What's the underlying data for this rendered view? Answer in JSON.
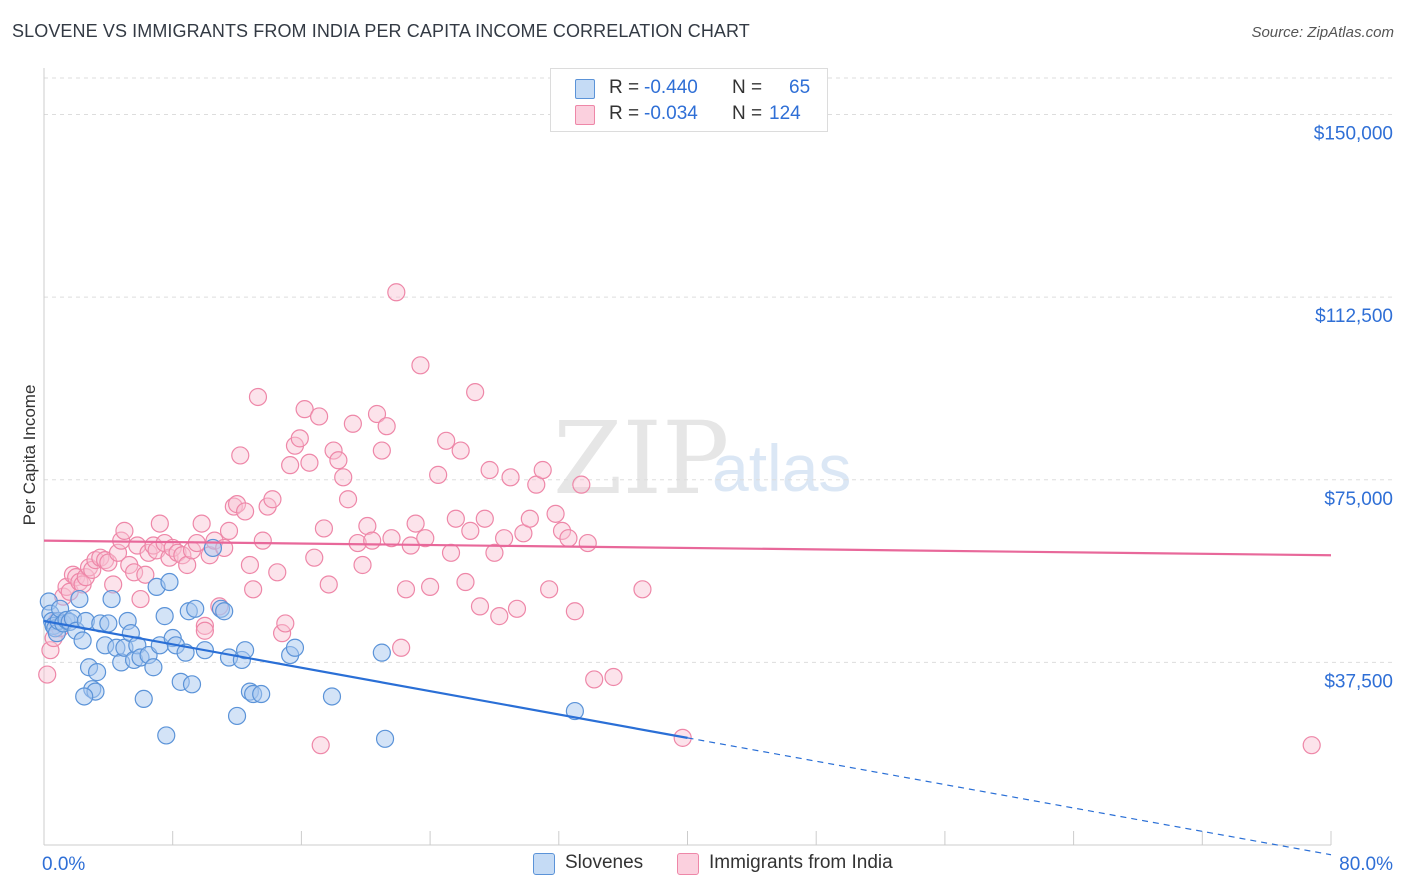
{
  "title": "SLOVENE VS IMMIGRANTS FROM INDIA PER CAPITA INCOME CORRELATION CHART",
  "source": "Source: ZipAtlas.com",
  "watermark": {
    "zip": "ZIP",
    "atlas": "atlas"
  },
  "colors": {
    "blue_fill": "#a8c8f0",
    "blue_stroke": "#5b93d8",
    "blue_line": "#2a6fd6",
    "pink_fill": "#f8c0d2",
    "pink_stroke": "#ee87a8",
    "pink_line": "#e8689a",
    "axis_label": "#2f6fd6",
    "grid": "#dddddd"
  },
  "legend": {
    "rows": [
      {
        "r_label": "R =",
        "r_value": "-0.440",
        "n_label": "N =",
        "n_value": "65"
      },
      {
        "r_label": "R =",
        "r_value": "-0.034",
        "n_label": "N =",
        "n_value": "124"
      }
    ]
  },
  "bottom_legend": {
    "series1": "Slovenes",
    "series2": "Immigrants from India"
  },
  "chart_data": {
    "type": "scatter",
    "title": "SLOVENE VS IMMIGRANTS FROM INDIA PER CAPITA INCOME CORRELATION CHART",
    "ylabel": "Per Capita Income",
    "xlabel": "",
    "xlim": [
      0,
      80
    ],
    "ylim": [
      0,
      157500
    ],
    "x_tick_labels": {
      "left": "0.0%",
      "right": "80.0%"
    },
    "y_ticks": [
      {
        "value": 37500,
        "label": "$37,500"
      },
      {
        "value": 75000,
        "label": "$75,000"
      },
      {
        "value": 112500,
        "label": "$112,500"
      },
      {
        "value": 150000,
        "label": "$150,000"
      }
    ],
    "series": [
      {
        "name": "Slovenes",
        "trend": {
          "x0": 0,
          "y0": 46000,
          "x1": 40,
          "y1": 22000,
          "dashed_to_x": 80,
          "dashed_to_y": -2000
        },
        "points": [
          [
            0.3,
            50000
          ],
          [
            0.4,
            47500
          ],
          [
            0.5,
            46000
          ],
          [
            0.6,
            45000
          ],
          [
            0.7,
            44500
          ],
          [
            0.8,
            43500
          ],
          [
            0.9,
            46000
          ],
          [
            1.0,
            48500
          ],
          [
            1.2,
            45500
          ],
          [
            1.4,
            46200
          ],
          [
            1.6,
            45800
          ],
          [
            1.8,
            46500
          ],
          [
            2.0,
            44000
          ],
          [
            2.2,
            50500
          ],
          [
            2.4,
            42000
          ],
          [
            2.6,
            46000
          ],
          [
            2.8,
            36500
          ],
          [
            3.0,
            32000
          ],
          [
            3.2,
            31500
          ],
          [
            3.5,
            45500
          ],
          [
            3.8,
            41000
          ],
          [
            4.0,
            45500
          ],
          [
            4.2,
            50500
          ],
          [
            4.5,
            40500
          ],
          [
            4.8,
            37500
          ],
          [
            5.0,
            40500
          ],
          [
            5.2,
            46000
          ],
          [
            5.4,
            43500
          ],
          [
            5.6,
            38000
          ],
          [
            5.8,
            41000
          ],
          [
            6.0,
            38500
          ],
          [
            6.2,
            30000
          ],
          [
            6.5,
            39000
          ],
          [
            6.8,
            36500
          ],
          [
            7.0,
            53000
          ],
          [
            7.2,
            41000
          ],
          [
            7.5,
            47000
          ],
          [
            7.8,
            54000
          ],
          [
            7.6,
            22500
          ],
          [
            8.0,
            42500
          ],
          [
            8.2,
            41000
          ],
          [
            8.5,
            33500
          ],
          [
            8.8,
            39500
          ],
          [
            9.0,
            48000
          ],
          [
            9.2,
            33000
          ],
          [
            9.4,
            48500
          ],
          [
            10.0,
            40000
          ],
          [
            10.5,
            61000
          ],
          [
            11.0,
            48500
          ],
          [
            11.2,
            48000
          ],
          [
            11.5,
            38500
          ],
          [
            12.0,
            26500
          ],
          [
            12.3,
            38000
          ],
          [
            12.5,
            40000
          ],
          [
            12.8,
            31500
          ],
          [
            13.0,
            31000
          ],
          [
            13.5,
            31000
          ],
          [
            15.3,
            39000
          ],
          [
            15.6,
            40500
          ],
          [
            17.9,
            30500
          ],
          [
            21.0,
            39500
          ],
          [
            21.2,
            21800
          ],
          [
            33.0,
            27500
          ],
          [
            2.5,
            30500
          ],
          [
            3.3,
            35500
          ]
        ]
      },
      {
        "name": "Immigrants from India",
        "trend": {
          "x0": 0,
          "y0": 62500,
          "x1": 80,
          "y1": 59500
        },
        "points": [
          [
            0.2,
            35000
          ],
          [
            0.4,
            40000
          ],
          [
            0.6,
            42500
          ],
          [
            0.8,
            46000
          ],
          [
            1.0,
            44500
          ],
          [
            1.2,
            51000
          ],
          [
            1.4,
            53000
          ],
          [
            1.6,
            52000
          ],
          [
            1.8,
            55500
          ],
          [
            2.0,
            55000
          ],
          [
            2.2,
            54000
          ],
          [
            2.4,
            53500
          ],
          [
            2.6,
            55000
          ],
          [
            2.8,
            57000
          ],
          [
            3.0,
            56500
          ],
          [
            3.2,
            58500
          ],
          [
            3.5,
            59000
          ],
          [
            3.8,
            58500
          ],
          [
            4.0,
            58000
          ],
          [
            4.3,
            53500
          ],
          [
            4.6,
            60000
          ],
          [
            4.8,
            62500
          ],
          [
            5.0,
            64500
          ],
          [
            5.3,
            57500
          ],
          [
            5.6,
            56000
          ],
          [
            5.8,
            61500
          ],
          [
            6.0,
            50500
          ],
          [
            6.3,
            55500
          ],
          [
            6.5,
            60000
          ],
          [
            6.8,
            61500
          ],
          [
            7.0,
            60500
          ],
          [
            7.2,
            66000
          ],
          [
            7.5,
            62000
          ],
          [
            7.8,
            59000
          ],
          [
            8.0,
            61000
          ],
          [
            8.3,
            60000
          ],
          [
            8.6,
            59500
          ],
          [
            8.9,
            57500
          ],
          [
            9.2,
            60500
          ],
          [
            9.5,
            62000
          ],
          [
            9.8,
            66000
          ],
          [
            10.0,
            45000
          ],
          [
            10.3,
            59500
          ],
          [
            10.6,
            62500
          ],
          [
            10.9,
            49000
          ],
          [
            11.2,
            61000
          ],
          [
            11.5,
            64500
          ],
          [
            11.8,
            69500
          ],
          [
            12.0,
            70000
          ],
          [
            12.2,
            80000
          ],
          [
            12.5,
            68500
          ],
          [
            12.8,
            57500
          ],
          [
            13.0,
            52500
          ],
          [
            13.3,
            92000
          ],
          [
            13.6,
            62500
          ],
          [
            13.9,
            69500
          ],
          [
            14.2,
            71000
          ],
          [
            14.5,
            56000
          ],
          [
            14.8,
            43500
          ],
          [
            15.0,
            45500
          ],
          [
            15.3,
            78000
          ],
          [
            15.6,
            82000
          ],
          [
            15.9,
            83500
          ],
          [
            16.2,
            89500
          ],
          [
            16.5,
            78500
          ],
          [
            16.8,
            59000
          ],
          [
            17.1,
            88000
          ],
          [
            17.4,
            65000
          ],
          [
            17.7,
            53500
          ],
          [
            18.0,
            81000
          ],
          [
            18.3,
            79000
          ],
          [
            18.6,
            75500
          ],
          [
            18.9,
            71000
          ],
          [
            19.2,
            86500
          ],
          [
            19.5,
            62000
          ],
          [
            19.8,
            57500
          ],
          [
            20.1,
            65500
          ],
          [
            20.4,
            62500
          ],
          [
            20.7,
            88500
          ],
          [
            21.0,
            81000
          ],
          [
            21.3,
            86000
          ],
          [
            21.6,
            63000
          ],
          [
            21.9,
            113500
          ],
          [
            22.2,
            40500
          ],
          [
            22.5,
            52500
          ],
          [
            22.8,
            61500
          ],
          [
            23.1,
            66000
          ],
          [
            23.4,
            98500
          ],
          [
            23.7,
            63000
          ],
          [
            24.0,
            53000
          ],
          [
            24.5,
            76000
          ],
          [
            25.0,
            83000
          ],
          [
            25.3,
            60000
          ],
          [
            25.6,
            67000
          ],
          [
            25.9,
            81000
          ],
          [
            26.2,
            54000
          ],
          [
            26.5,
            64500
          ],
          [
            26.8,
            93000
          ],
          [
            27.1,
            49000
          ],
          [
            27.4,
            67000
          ],
          [
            27.7,
            77000
          ],
          [
            28.0,
            60000
          ],
          [
            28.3,
            47000
          ],
          [
            28.6,
            63000
          ],
          [
            29.0,
            75500
          ],
          [
            29.4,
            48500
          ],
          [
            29.8,
            64000
          ],
          [
            30.2,
            67000
          ],
          [
            30.6,
            74000
          ],
          [
            31.0,
            77000
          ],
          [
            31.4,
            52500
          ],
          [
            31.8,
            68000
          ],
          [
            32.2,
            64500
          ],
          [
            32.6,
            63000
          ],
          [
            33.0,
            48000
          ],
          [
            33.4,
            74000
          ],
          [
            33.8,
            62000
          ],
          [
            34.2,
            34000
          ],
          [
            35.4,
            34500
          ],
          [
            37.2,
            52500
          ],
          [
            39.7,
            22000
          ],
          [
            78.8,
            20500
          ],
          [
            17.2,
            20500
          ],
          [
            10.0,
            44000
          ]
        ]
      }
    ]
  }
}
